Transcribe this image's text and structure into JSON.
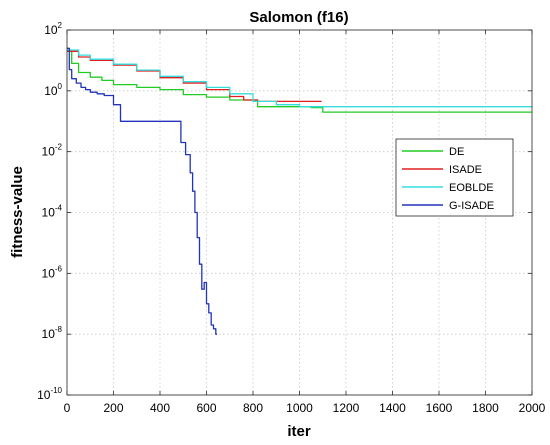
{
  "chart_data": {
    "type": "line",
    "title": "Salomon (f16)",
    "xlabel": "iter",
    "ylabel": "fitness-value",
    "xlim": [
      0,
      2000
    ],
    "ylim": [
      1e-10,
      100
    ],
    "yscale": "log",
    "x_ticks": [
      0,
      200,
      400,
      600,
      800,
      1000,
      1200,
      1400,
      1600,
      1800,
      2000
    ],
    "y_tick_exponents": [
      -10,
      -8,
      -6,
      -4,
      -2,
      0,
      2
    ],
    "y_tick_base": "10",
    "grid": true,
    "legend_position": "right",
    "series": [
      {
        "name": "DE",
        "color": "#22cc22",
        "x": [
          0,
          20,
          50,
          100,
          150,
          200,
          300,
          400,
          500,
          600,
          700,
          800,
          820,
          1000,
          1050,
          1100,
          1300,
          2000
        ],
        "y": [
          20,
          8,
          4,
          2.8,
          2.2,
          1.6,
          1.3,
          1.1,
          0.75,
          0.62,
          0.5,
          0.5,
          0.3,
          0.3,
          0.28,
          0.2,
          0.2,
          0.2
        ]
      },
      {
        "name": "ISADE",
        "color": "#e02020",
        "x": [
          0,
          50,
          100,
          200,
          300,
          400,
          500,
          600,
          700,
          760,
          800,
          820,
          960,
          1000,
          1090,
          1095
        ],
        "y": [
          20,
          13,
          10,
          7,
          4.5,
          2.7,
          1.8,
          1.1,
          0.65,
          0.5,
          0.5,
          0.45,
          0.45,
          0.45,
          0.45,
          0.45
        ]
      },
      {
        "name": "EOBLDE",
        "color": "#33dddd",
        "x": [
          0,
          50,
          100,
          200,
          300,
          400,
          500,
          600,
          700,
          800,
          900,
          1000,
          1200,
          1500,
          2000
        ],
        "y": [
          22,
          15,
          11,
          7.5,
          4.8,
          3.0,
          2.0,
          1.3,
          0.8,
          0.45,
          0.35,
          0.3,
          0.3,
          0.3,
          0.3
        ]
      },
      {
        "name": "G-ISADE",
        "color": "#2233bb",
        "x": [
          0,
          10,
          20,
          40,
          60,
          80,
          100,
          130,
          160,
          200,
          230,
          260,
          300,
          350,
          400,
          450,
          475,
          490,
          510,
          530,
          540,
          550,
          560,
          570,
          580,
          590,
          600,
          610,
          620,
          630,
          640,
          645
        ],
        "y": [
          25,
          5,
          2.5,
          1.8,
          1.3,
          1.1,
          0.9,
          0.8,
          0.7,
          0.35,
          0.1,
          0.1,
          0.1,
          0.1,
          0.1,
          0.1,
          0.1,
          0.02,
          0.008,
          0.002,
          0.0005,
          0.0001,
          1.5e-05,
          2e-06,
          3e-07,
          5e-07,
          1e-07,
          5e-08,
          2e-08,
          1.5e-08,
          1e-08,
          1e-08
        ]
      }
    ]
  }
}
